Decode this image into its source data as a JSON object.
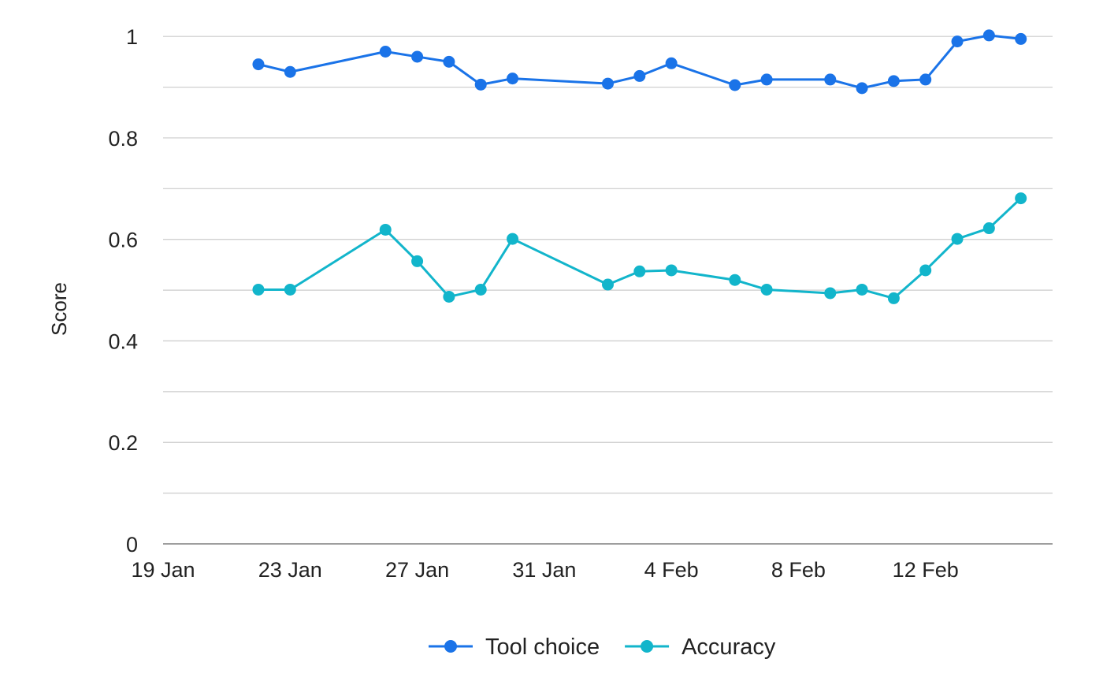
{
  "chart_data": {
    "type": "line",
    "ylabel": "Score",
    "xlabel": "",
    "ylim": [
      0,
      1.05
    ],
    "y_ticks": [
      {
        "value": 0,
        "label": "0"
      },
      {
        "value": 0.2,
        "label": "0.2"
      },
      {
        "value": 0.4,
        "label": "0.4"
      },
      {
        "value": 0.6,
        "label": "0.6"
      },
      {
        "value": 0.8,
        "label": "0.8"
      },
      {
        "value": 1,
        "label": "1"
      }
    ],
    "minor_gridlines": [
      0.1,
      0.3,
      0.5,
      0.7,
      0.9
    ],
    "xlim": [
      "2024-01-19",
      "2024-02-16"
    ],
    "x_ticks": [
      {
        "date": "2024-01-19",
        "label": "19 Jan"
      },
      {
        "date": "2024-01-23",
        "label": "23 Jan"
      },
      {
        "date": "2024-01-27",
        "label": "27 Jan"
      },
      {
        "date": "2024-01-31",
        "label": "31 Jan"
      },
      {
        "date": "2024-02-04",
        "label": "4 Feb"
      },
      {
        "date": "2024-02-08",
        "label": "8 Feb"
      },
      {
        "date": "2024-02-12",
        "label": "12 Feb"
      }
    ],
    "legend_position": "bottom",
    "grid": true,
    "series": [
      {
        "name": "Tool choice",
        "color": "#1a73e8",
        "x": [
          "2024-01-22",
          "2024-01-23",
          "2024-01-26",
          "2024-01-27",
          "2024-01-28",
          "2024-01-29",
          "2024-01-30",
          "2024-02-02",
          "2024-02-03",
          "2024-02-04",
          "2024-02-06",
          "2024-02-07",
          "2024-02-09",
          "2024-02-10",
          "2024-02-11",
          "2024-02-12",
          "2024-02-13",
          "2024-02-14",
          "2024-02-15"
        ],
        "y": [
          0.945,
          0.93,
          0.97,
          0.96,
          0.95,
          0.905,
          0.917,
          0.907,
          0.922,
          0.947,
          0.904,
          0.915,
          0.915,
          0.898,
          0.912,
          0.915,
          0.99,
          1.002,
          0.995
        ]
      },
      {
        "name": "Accuracy",
        "color": "#12b5cb",
        "x": [
          "2024-01-22",
          "2024-01-23",
          "2024-01-26",
          "2024-01-27",
          "2024-01-28",
          "2024-01-29",
          "2024-01-30",
          "2024-02-02",
          "2024-02-03",
          "2024-02-04",
          "2024-02-06",
          "2024-02-07",
          "2024-02-09",
          "2024-02-10",
          "2024-02-11",
          "2024-02-12",
          "2024-02-13",
          "2024-02-14",
          "2024-02-15"
        ],
        "y": [
          0.501,
          0.501,
          0.619,
          0.557,
          0.487,
          0.501,
          0.601,
          0.511,
          0.537,
          0.539,
          0.52,
          0.501,
          0.494,
          0.501,
          0.484,
          0.539,
          0.601,
          0.622,
          0.681
        ]
      }
    ]
  }
}
